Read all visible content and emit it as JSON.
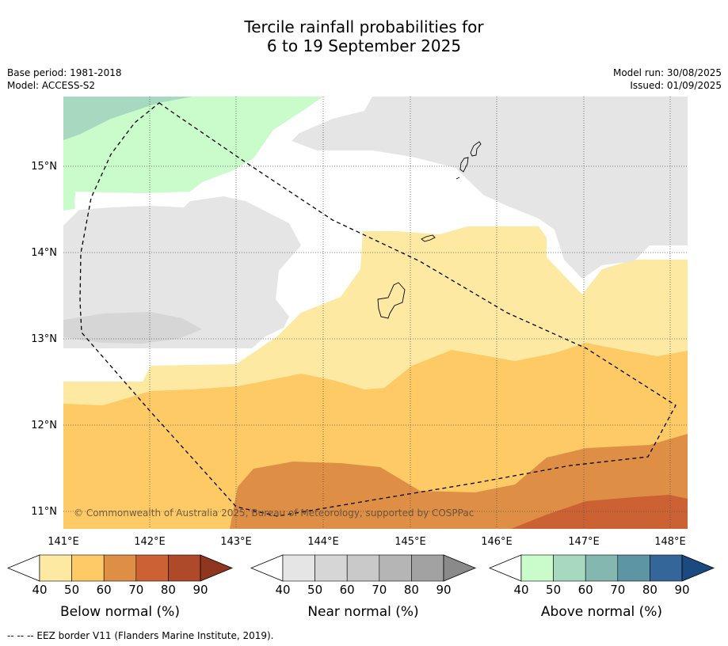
{
  "title_line1": "Tercile rainfall probabilities for",
  "title_line2": "6 to 19 September 2025",
  "meta": {
    "base_period": "Base period: 1981-2018",
    "model": "Model: ACCESS-S2",
    "model_run": "Model run: 30/08/2025",
    "issued": "Issued: 01/09/2025"
  },
  "axes": {
    "lon_labels": [
      "141°E",
      "142°E",
      "143°E",
      "144°E",
      "145°E",
      "146°E",
      "147°E",
      "148°E"
    ],
    "lat_labels": [
      "15°N",
      "14°N",
      "13°N",
      "12°N",
      "11°N"
    ]
  },
  "copyright": "© Commonwealth of Australia 2025, Bureau of Meteorology, supported by COSPPac",
  "colorbars": [
    {
      "label": "Below normal (%)",
      "ticks": [
        "40",
        "50",
        "60",
        "70",
        "80",
        "90"
      ],
      "colors": [
        "#fde9a2",
        "#fdca66",
        "#df8f45",
        "#cc6233",
        "#ae4a2a",
        "#90361f"
      ]
    },
    {
      "label": "Near normal (%)",
      "ticks": [
        "40",
        "50",
        "60",
        "70",
        "80",
        "90"
      ],
      "colors": [
        "#e5e5e5",
        "#d6d6d6",
        "#c9c9c9",
        "#b5b5b5",
        "#a2a2a2",
        "#8a8a8a"
      ]
    },
    {
      "label": "Above normal (%)",
      "ticks": [
        "40",
        "50",
        "60",
        "70",
        "80",
        "90"
      ],
      "colors": [
        "#c9fcca",
        "#a7d8c0",
        "#85b7b1",
        "#5d95a4",
        "#356699",
        "#1a4a80"
      ]
    }
  ],
  "footer": "--  --  -- EEZ border V11 (Flanders Marine Institute, 2019)."
}
